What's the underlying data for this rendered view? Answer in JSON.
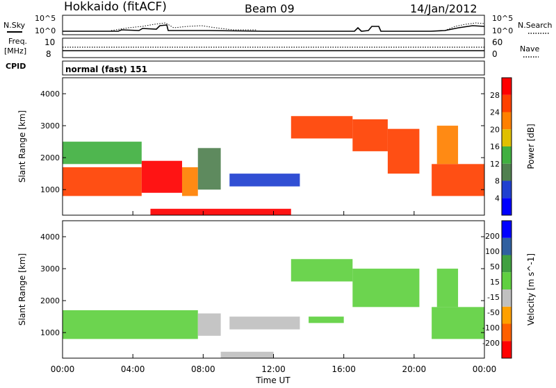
{
  "header": {
    "station": "Hokkaido (fitACF)",
    "beam": "Beam 09",
    "date": "14/Jan/2012"
  },
  "noise_panel": {
    "left_label": "N.Sky",
    "right_label": "N.Search",
    "tick_top": "10^5",
    "tick_bottom": "10^0",
    "right_tick_top": "10^5",
    "right_tick_bottom": "10^0"
  },
  "freq_panel": {
    "left_label_1": "Freq.",
    "left_label_2": "[MHz]",
    "right_label": "Nave",
    "left_ticks": [
      "10",
      "8"
    ],
    "right_ticks": [
      "60",
      "0"
    ]
  },
  "cpid_panel": {
    "label": "CPID",
    "mode": "normal (fast) 151"
  },
  "colors": {
    "scale_power": [
      "#0000ff",
      "#2040d0",
      "#508050",
      "#40b040",
      "#e0c000",
      "#ff8000",
      "#ff4000",
      "#ff0000"
    ],
    "scale_velocity": [
      "#0000ff",
      "#3060a0",
      "#40a040",
      "#60d040",
      "#c0c0c0",
      "#ffa000",
      "#ff6000",
      "#ff0000"
    ],
    "ground_scatter": "#c0c0c0"
  },
  "chart_data": [
    {
      "type": "heatmap",
      "panel": "power",
      "ylabel": "Slant Range [km]",
      "y_ticks": [
        "1000",
        "2000",
        "3000",
        "4000"
      ],
      "ylim": [
        200,
        4500
      ],
      "colorbar_label": "Power [dB]",
      "colorbar_ticks": [
        "4",
        "8",
        "12",
        "16",
        "20",
        "24",
        "28"
      ],
      "value_range": [
        0,
        32
      ],
      "regions": [
        {
          "t": [
            0,
            4.5
          ],
          "r": [
            800,
            1700
          ],
          "v": 27
        },
        {
          "t": [
            4.5,
            6.8
          ],
          "r": [
            900,
            1900
          ],
          "v": 28
        },
        {
          "t": [
            6.8,
            7.7
          ],
          "r": [
            800,
            1700
          ],
          "v": 22
        },
        {
          "t": [
            7.7,
            9.0
          ],
          "r": [
            1000,
            2300
          ],
          "v": 9
        },
        {
          "t": [
            9.5,
            13.5
          ],
          "r": [
            1100,
            1500
          ],
          "v": 7
        },
        {
          "t": [
            13.0,
            16.5
          ],
          "r": [
            2600,
            3300
          ],
          "v": 27
        },
        {
          "t": [
            16.5,
            18.5
          ],
          "r": [
            2200,
            3200
          ],
          "v": 25
        },
        {
          "t": [
            18.5,
            20.3
          ],
          "r": [
            1500,
            2900
          ],
          "v": 24
        },
        {
          "t": [
            21.0,
            24.0
          ],
          "r": [
            800,
            1800
          ],
          "v": 27
        },
        {
          "t": [
            21.3,
            22.5
          ],
          "r": [
            1800,
            3000
          ],
          "v": 20
        },
        {
          "t": [
            5.0,
            13.0
          ],
          "r": [
            200,
            400
          ],
          "v": 29
        },
        {
          "t": [
            0,
            4.5
          ],
          "r": [
            1800,
            2500
          ],
          "v": 14
        }
      ]
    },
    {
      "type": "heatmap",
      "panel": "velocity",
      "ylabel": "Slant Range [km]",
      "y_ticks": [
        "1000",
        "2000",
        "3000",
        "4000"
      ],
      "ylim": [
        200,
        4500
      ],
      "colorbar_label": "Velocity [m s^-1]",
      "colorbar_ticks": [
        "200",
        "100",
        "50",
        "15",
        "-15",
        "-50",
        "-100",
        "-200"
      ],
      "value_range": [
        -250,
        250
      ],
      "regions": [
        {
          "t": [
            0,
            7.7
          ],
          "r": [
            800,
            1700
          ],
          "v": 0
        },
        {
          "t": [
            7.7,
            9.0
          ],
          "r": [
            900,
            1600
          ],
          "v": -40
        },
        {
          "t": [
            9.5,
            13.5
          ],
          "r": [
            1100,
            1500
          ],
          "v": -60
        },
        {
          "t": [
            13.0,
            16.5
          ],
          "r": [
            2600,
            3300
          ],
          "v": 0
        },
        {
          "t": [
            16.5,
            20.3
          ],
          "r": [
            1800,
            3000
          ],
          "v": 0
        },
        {
          "t": [
            21.0,
            24.0
          ],
          "r": [
            800,
            1800
          ],
          "v": 0
        },
        {
          "t": [
            21.3,
            22.5
          ],
          "r": [
            1800,
            3000
          ],
          "v": 40
        },
        {
          "t": [
            14.0,
            16.0
          ],
          "r": [
            1300,
            1500
          ],
          "v": 40
        },
        {
          "t": [
            9.0,
            12.0
          ],
          "r": [
            200,
            400
          ],
          "v": -60
        }
      ],
      "x_ticks": [
        "00:00",
        "04:00",
        "08:00",
        "12:00",
        "16:00",
        "20:00",
        "00:00"
      ],
      "xlabel": "Time UT",
      "xlim": [
        0,
        24
      ]
    }
  ]
}
